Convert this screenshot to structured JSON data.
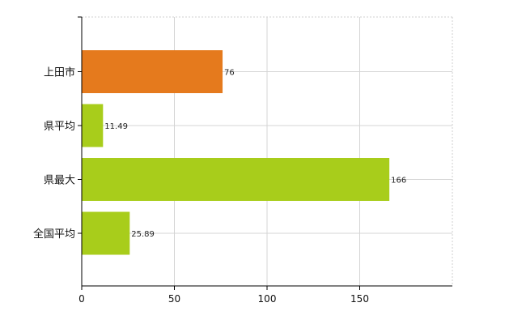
{
  "chart_data": {
    "type": "bar",
    "orientation": "horizontal",
    "categories": [
      "上田市",
      "県平均",
      "県最大",
      "全国平均"
    ],
    "values": [
      76,
      11.49,
      166,
      25.89
    ],
    "value_labels": [
      "76",
      "11.49",
      "166",
      "25.89"
    ],
    "bar_colors": [
      "#e57a1d",
      "#a8cd1b",
      "#a8cd1b",
      "#a8cd1b"
    ],
    "xlim": [
      0,
      200
    ],
    "x_ticks": [
      0,
      50,
      100,
      150
    ],
    "grid": true,
    "legend": "none"
  }
}
